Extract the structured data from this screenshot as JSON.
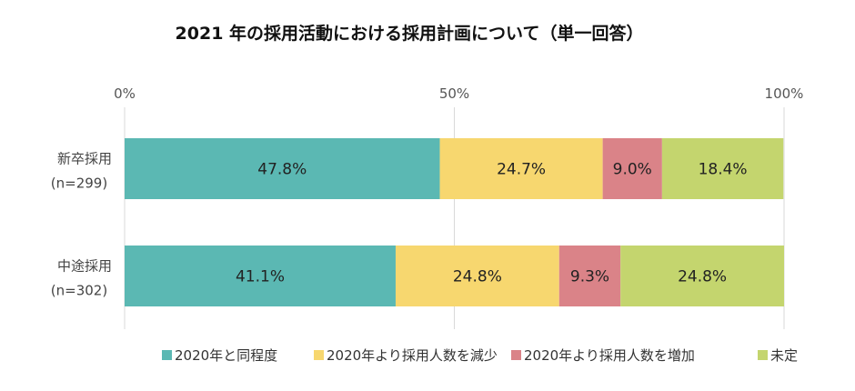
{
  "chart_data": {
    "type": "bar",
    "orientation": "horizontal",
    "stacked": true,
    "title": "2021 年の採用活動における採用計画について（単一回答）",
    "xlim": [
      0,
      100
    ],
    "ticks": [
      {
        "value": 0,
        "label": "0%"
      },
      {
        "value": 50,
        "label": "50%"
      },
      {
        "value": 100,
        "label": "100%"
      }
    ],
    "grid": true,
    "legend_position": "bottom",
    "categories": [
      {
        "name": "新卒採用",
        "n": "(n=299)"
      },
      {
        "name": "中途採用",
        "n": "(n=302)"
      }
    ],
    "series": [
      {
        "name": "2020年と同程度",
        "color": "#5bb8b3",
        "values": [
          47.8,
          41.1
        ],
        "labels": [
          "47.8%",
          "41.1%"
        ]
      },
      {
        "name": "2020年より採用人数を減少",
        "color": "#f7d76f",
        "values": [
          24.7,
          24.8
        ],
        "labels": [
          "24.7%",
          "24.8%"
        ]
      },
      {
        "name": "2020年より採用人数を増加",
        "color": "#da8388",
        "values": [
          9.0,
          9.3
        ],
        "labels": [
          "9.0%",
          "9.3%"
        ]
      },
      {
        "name": "未定",
        "color": "#c4d56e",
        "values": [
          18.4,
          24.8
        ],
        "labels": [
          "18.4%",
          "24.8%"
        ]
      }
    ]
  }
}
